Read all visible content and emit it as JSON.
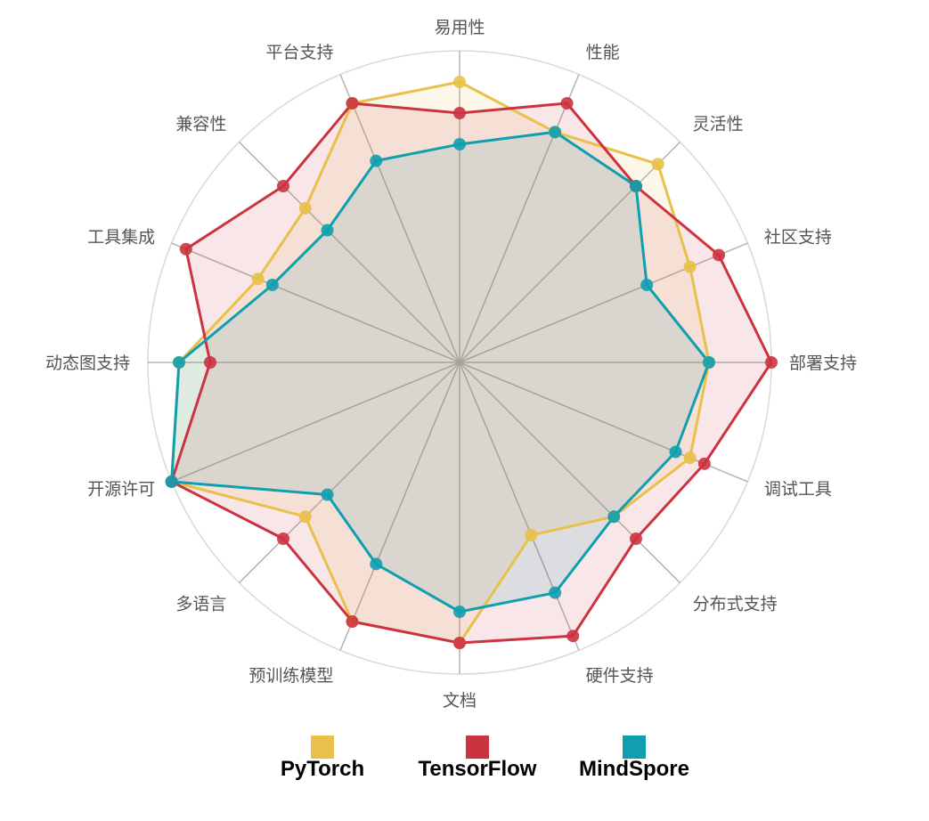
{
  "chart_data": {
    "type": "radar",
    "axes": [
      "易用性",
      "性能",
      "灵活性",
      "社区支持",
      "部署支持",
      "调试工具",
      "分布式支持",
      "硬件支持",
      "文档",
      "预训练模型",
      "多语言",
      "开源许可",
      "动态图支持",
      "工具集成",
      "兼容性",
      "平台支持"
    ],
    "range": [
      0,
      10
    ],
    "grid": "circles-and-spokes",
    "legend_position": "bottom",
    "series": [
      {
        "name": "PyTorch",
        "color": "#e8c04a",
        "values": [
          9,
          8,
          9,
          8,
          8,
          8,
          7,
          6,
          9,
          9,
          7,
          10,
          9,
          7,
          7,
          9
        ]
      },
      {
        "name": "TensorFlow",
        "color": "#cc3340",
        "values": [
          8,
          9,
          8,
          9,
          10,
          8.5,
          8,
          9.5,
          9,
          9,
          8,
          10,
          8,
          9.5,
          8,
          9
        ]
      },
      {
        "name": "MindSpore",
        "color": "#0f9faf",
        "values": [
          7,
          8,
          8,
          6.5,
          8,
          7.5,
          7,
          8,
          8,
          7,
          6,
          10,
          9,
          6.5,
          6,
          7
        ]
      }
    ]
  }
}
